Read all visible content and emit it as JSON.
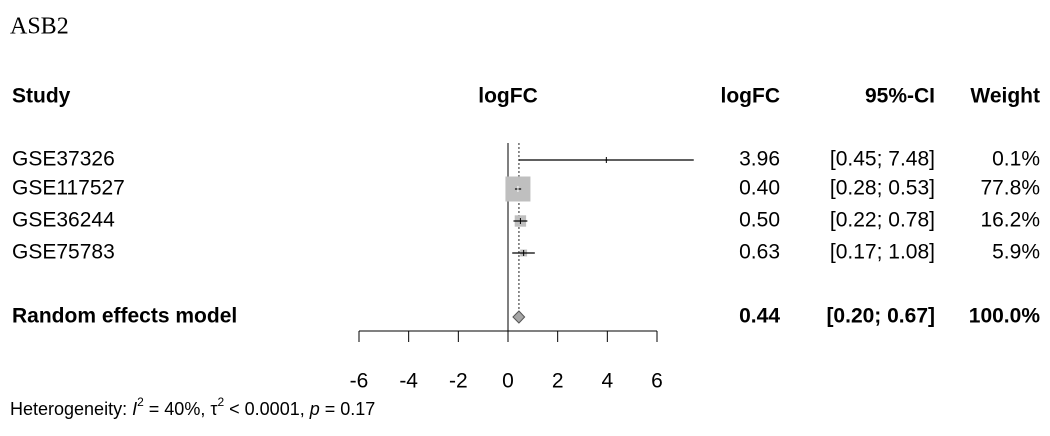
{
  "chart_data": {
    "type": "forest",
    "title": "ASB2",
    "headers": {
      "study": "Study",
      "plot": "logFC",
      "estimate": "logFC",
      "ci": "95%-CI",
      "weight": "Weight"
    },
    "studies": [
      {
        "name": "GSE37326",
        "logFC": 3.96,
        "logFC_label": "3.96",
        "lower": 0.45,
        "upper": 7.48,
        "ci_label": "[0.45; 7.48]",
        "weight": 0.1,
        "weight_label": "0.1%"
      },
      {
        "name": "GSE117527",
        "logFC": 0.4,
        "logFC_label": "0.40",
        "lower": 0.28,
        "upper": 0.53,
        "ci_label": "[0.28; 0.53]",
        "weight": 77.8,
        "weight_label": "77.8%"
      },
      {
        "name": "GSE36244",
        "logFC": 0.5,
        "logFC_label": "0.50",
        "lower": 0.22,
        "upper": 0.78,
        "ci_label": "[0.22; 0.78]",
        "weight": 16.2,
        "weight_label": "16.2%"
      },
      {
        "name": "GSE75783",
        "logFC": 0.63,
        "logFC_label": "0.63",
        "lower": 0.17,
        "upper": 1.08,
        "ci_label": "[0.17; 1.08]",
        "weight": 5.9,
        "weight_label": "5.9%"
      }
    ],
    "model": {
      "name": "Random effects model",
      "logFC": 0.44,
      "logFC_label": "0.44",
      "lower": 0.2,
      "upper": 0.67,
      "ci_label": "[0.20; 0.67]",
      "weight": 100,
      "weight_label": "100.0%"
    },
    "xlim": [
      -6,
      6
    ],
    "xticks": [
      -6,
      -4,
      -2,
      0,
      2,
      4,
      6
    ],
    "square_color": "#bfbfbf",
    "diamond_color": "#a6a6a6",
    "heterogeneity": [
      {
        "text": "Heterogeneity: "
      },
      {
        "text": "I",
        "style": "italic"
      },
      {
        "text": "2",
        "style": "sup"
      },
      {
        "text": " = 40%, "
      },
      {
        "text": "τ"
      },
      {
        "text": "2",
        "style": "sup"
      },
      {
        "text": " < 0.0001, "
      },
      {
        "text": "p",
        "style": "italic"
      },
      {
        "text": " = 0.17"
      }
    ]
  }
}
